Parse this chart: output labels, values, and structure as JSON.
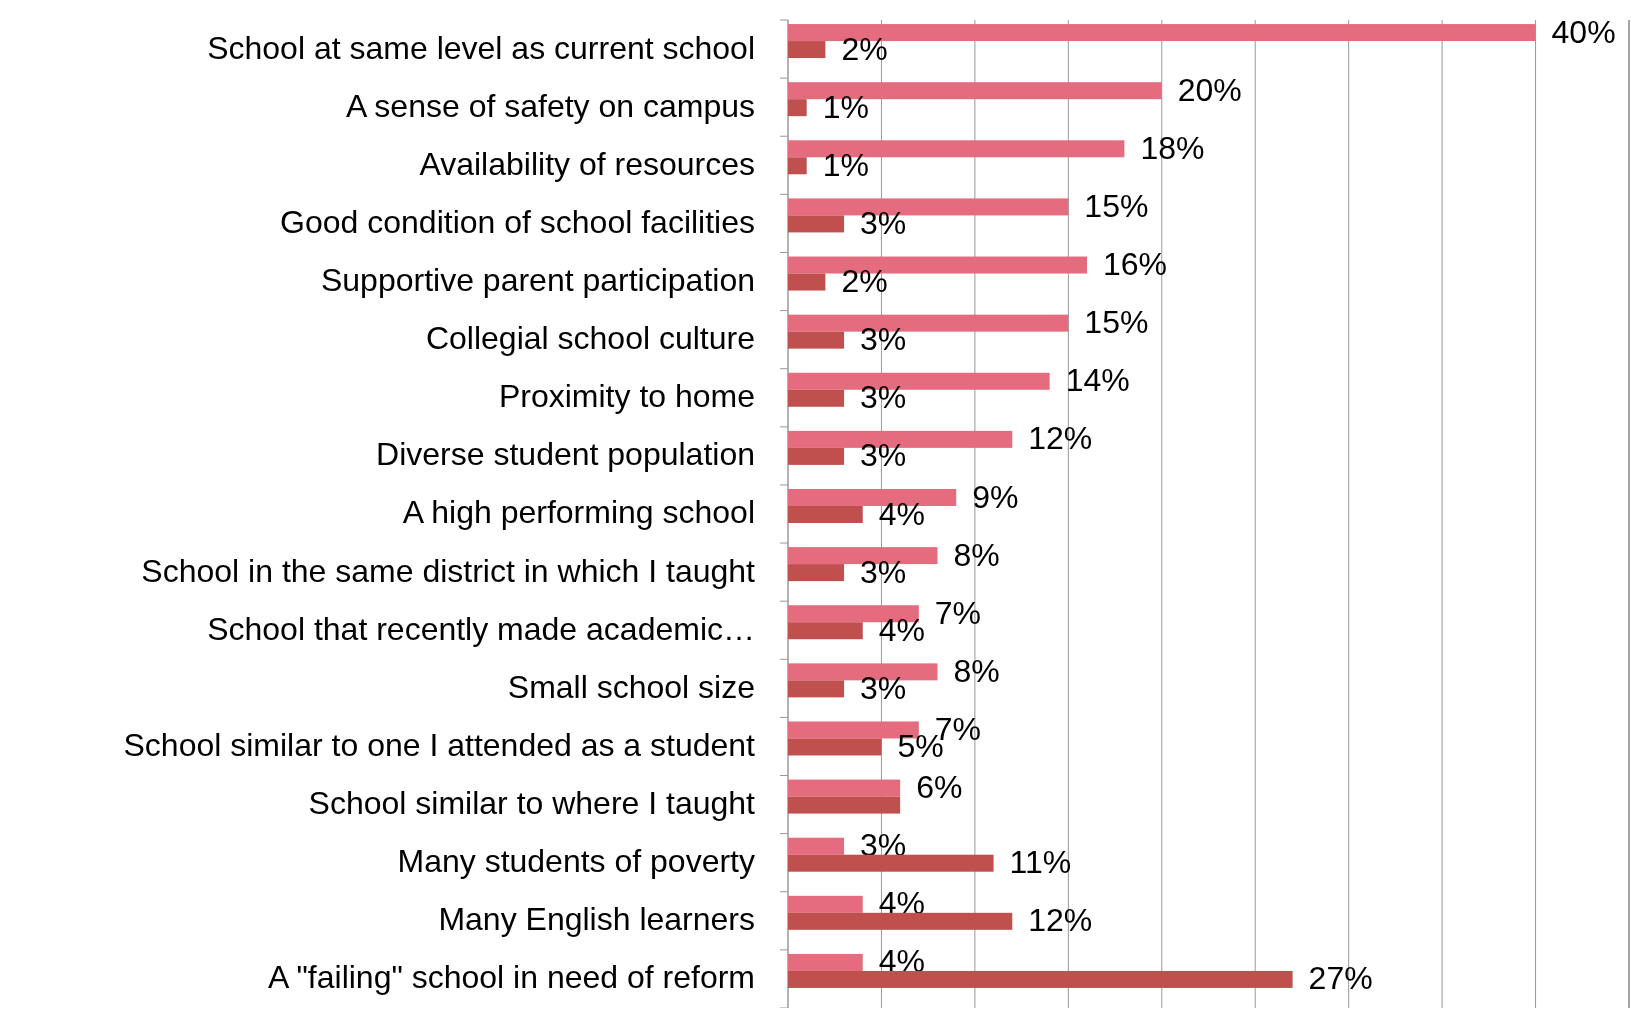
{
  "chart_data": {
    "type": "bar",
    "orientation": "horizontal",
    "categories": [
      "School at same level as current school",
      "A sense of safety on campus",
      "Availability of resources",
      "Good condition of school facilities",
      "Supportive parent participation",
      "Collegial school culture",
      "Proximity to home",
      "Diverse student population",
      "A high performing school",
      "School in the same district in which I taught",
      "School that recently made academic…",
      "Small school size",
      "School similar to one I attended as a student",
      "School similar to where I taught",
      "Many students of poverty",
      "Many English learners",
      "A \"failing\" school in need of reform"
    ],
    "series": [
      {
        "color": "#e46c7e",
        "values": [
          40,
          20,
          18,
          15,
          16,
          15,
          14,
          12,
          9,
          8,
          7,
          8,
          7,
          6,
          3,
          4,
          4
        ],
        "value_labels": [
          "40%",
          "20%",
          "18%",
          "15%",
          "16%",
          "15%",
          "14%",
          "12%",
          "9%",
          "8%",
          "7%",
          "8%",
          "7%",
          "6%",
          "3%",
          "4%",
          "4%"
        ]
      },
      {
        "color": "#c0504d",
        "values": [
          2,
          1,
          1,
          3,
          2,
          3,
          3,
          3,
          4,
          3,
          4,
          3,
          5,
          6,
          11,
          12,
          27
        ],
        "value_labels": [
          "2%",
          "1%",
          "1%",
          "3%",
          "2%",
          "3%",
          "3%",
          "3%",
          "4%",
          "3%",
          "4%",
          "3%",
          "5%",
          null,
          "11%",
          "12%",
          "27%"
        ]
      }
    ],
    "xlim": [
      0,
      45
    ],
    "xticks": [
      {
        "value": 0,
        "label": null
      },
      {
        "value": 5,
        "label": null
      },
      {
        "value": 10,
        "label": null
      },
      {
        "value": 15,
        "label": null
      },
      {
        "value": 20,
        "label": null
      },
      {
        "value": 25,
        "label": null
      },
      {
        "value": 30,
        "label": null
      },
      {
        "value": 35,
        "label": null
      },
      {
        "value": 40,
        "label": null
      },
      {
        "value": 45,
        "label": null
      }
    ],
    "tick_labels": "y",
    "grid": "x"
  }
}
